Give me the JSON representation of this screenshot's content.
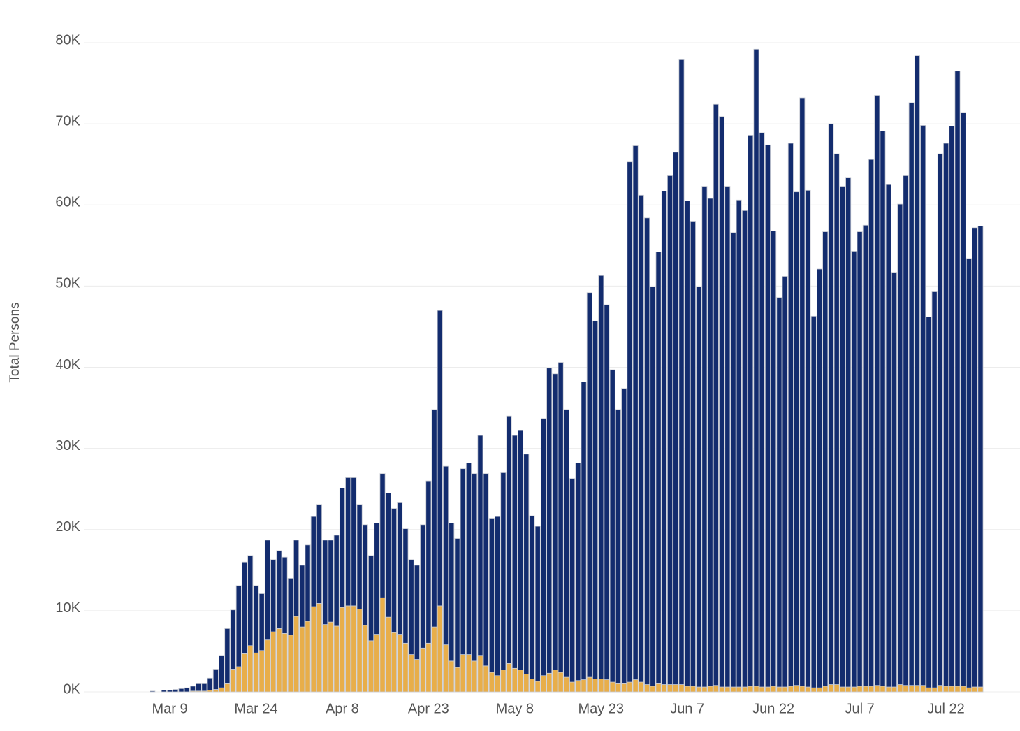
{
  "chart_data": {
    "type": "stacked-bar",
    "y_label": "Total Persons",
    "ylim": [
      0,
      80000
    ],
    "yticks": [
      {
        "value": 0,
        "label": "0K"
      },
      {
        "value": 10000,
        "label": "10K"
      },
      {
        "value": 20000,
        "label": "20K"
      },
      {
        "value": 30000,
        "label": "30K"
      },
      {
        "value": 40000,
        "label": "40K"
      },
      {
        "value": 50000,
        "label": "50K"
      },
      {
        "value": 60000,
        "label": "60K"
      },
      {
        "value": 70000,
        "label": "70K"
      },
      {
        "value": 80000,
        "label": "80K"
      }
    ],
    "grid": true,
    "categories": [
      null,
      null,
      null,
      "Mar 9",
      null,
      null,
      null,
      null,
      null,
      null,
      null,
      null,
      null,
      null,
      null,
      null,
      null,
      null,
      "Mar 24",
      null,
      null,
      null,
      null,
      null,
      null,
      null,
      null,
      null,
      null,
      null,
      null,
      null,
      null,
      "Apr 8",
      null,
      null,
      null,
      null,
      null,
      null,
      null,
      null,
      null,
      null,
      null,
      null,
      null,
      null,
      "Apr 23",
      null,
      null,
      null,
      null,
      null,
      null,
      null,
      null,
      null,
      null,
      null,
      null,
      null,
      null,
      "May 8",
      null,
      null,
      null,
      null,
      null,
      null,
      null,
      null,
      null,
      null,
      null,
      null,
      null,
      null,
      "May 23",
      null,
      null,
      null,
      null,
      null,
      null,
      null,
      null,
      null,
      null,
      null,
      null,
      null,
      null,
      "Jun 7",
      null,
      null,
      null,
      null,
      null,
      null,
      null,
      null,
      null,
      null,
      null,
      null,
      null,
      null,
      "Jun 22",
      null,
      null,
      null,
      null,
      null,
      null,
      null,
      null,
      null,
      null,
      null,
      null,
      null,
      null,
      "Jul 7",
      null,
      null,
      null,
      null,
      null,
      null,
      null,
      null,
      null,
      null,
      null,
      null,
      null,
      null,
      "Jul 22",
      null,
      null,
      null,
      null,
      null,
      null
    ],
    "series": [
      {
        "color": "#e8ae4a",
        "values": [
          0,
          0,
          0,
          0,
          0,
          0,
          0,
          100,
          100,
          100,
          200,
          300,
          500,
          1000,
          2800,
          3100,
          4700,
          5700,
          4800,
          5100,
          6400,
          7400,
          7800,
          7200,
          7000,
          9300,
          8000,
          8700,
          10500,
          10900,
          8300,
          8600,
          8100,
          10400,
          10600,
          10600,
          10200,
          8200,
          6300,
          7100,
          11600,
          9200,
          7300,
          7100,
          6000,
          4600,
          4000,
          5400,
          6000,
          8000,
          10600,
          5800,
          3800,
          3000,
          4600,
          4600,
          3800,
          4500,
          3200,
          2400,
          2000,
          2700,
          3500,
          2900,
          2700,
          2200,
          1600,
          1300,
          2000,
          2300,
          2700,
          2400,
          1800,
          1200,
          1400,
          1500,
          1800,
          1600,
          1600,
          1500,
          1200,
          1000,
          1000,
          1200,
          1500,
          1200,
          900,
          700,
          1000,
          900,
          900,
          900,
          900,
          700,
          700,
          600,
          600,
          700,
          800,
          600,
          600,
          600,
          600,
          600,
          700,
          700,
          600,
          600,
          700,
          600,
          600,
          700,
          800,
          700,
          600,
          500,
          500,
          700,
          900,
          900,
          600,
          600,
          600,
          700,
          700,
          700,
          800,
          700,
          600,
          600,
          900,
          800,
          800,
          800,
          800,
          500,
          500,
          800,
          700,
          700,
          700,
          700,
          500,
          600,
          600
        ]
      },
      {
        "color": "#132c6e",
        "values": [
          100,
          0,
          200,
          200,
          300,
          400,
          500,
          600,
          900,
          900,
          1500,
          2500,
          4000,
          6800,
          7300,
          10000,
          11300,
          11100,
          8300,
          7000,
          12300,
          8900,
          9600,
          9400,
          7000,
          9400,
          7600,
          9400,
          11100,
          12200,
          10400,
          10100,
          11200,
          14700,
          15800,
          15800,
          12900,
          12400,
          10500,
          13700,
          15300,
          15300,
          15300,
          16200,
          14100,
          11700,
          11600,
          15200,
          20000,
          26800,
          36400,
          22000,
          17000,
          15900,
          22900,
          23600,
          23100,
          27100,
          23700,
          19000,
          19600,
          24300,
          30500,
          28700,
          29500,
          27100,
          20100,
          19100,
          31700,
          37600,
          36500,
          38200,
          33000,
          25100,
          26800,
          36700,
          47400,
          44100,
          49700,
          46200,
          38500,
          33800,
          36400,
          64100,
          65800,
          60000,
          57500,
          49200,
          53200,
          60800,
          62700,
          65600,
          77000,
          59800,
          57300,
          49300,
          61700,
          60100,
          71600,
          70300,
          61700,
          56000,
          60000,
          58700,
          67900,
          78500,
          68300,
          66800,
          56100,
          48000,
          50600,
          66900,
          60800,
          72500,
          61200,
          45800,
          51600,
          56000,
          69100,
          65400,
          61700,
          62800,
          53700,
          56000,
          56800,
          64900,
          72700,
          68400,
          61900,
          51100,
          59200,
          62800,
          71800,
          77600,
          69000,
          45700,
          48800,
          65500,
          66900,
          69000,
          75800,
          70700,
          52900,
          56600,
          56800
        ]
      }
    ]
  }
}
